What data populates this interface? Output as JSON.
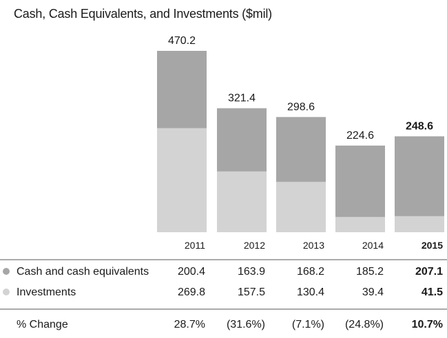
{
  "chart_data": {
    "type": "bar",
    "stacked": true,
    "title": "Cash, Cash Equivalents, and Investments ($mil)",
    "categories": [
      "2011",
      "2012",
      "2013",
      "2014",
      "2015"
    ],
    "highlight_category": "2015",
    "series": [
      {
        "name": "Cash and cash equivalents",
        "values": [
          200.4,
          163.9,
          168.2,
          185.2,
          207.1
        ],
        "labels": [
          "200.4",
          "163.9",
          "168.2",
          "185.2",
          "207.1"
        ],
        "color": "#a6a6a6"
      },
      {
        "name": "Investments",
        "values": [
          269.8,
          157.5,
          130.4,
          39.4,
          41.5
        ],
        "labels": [
          "269.8",
          "157.5",
          "130.4",
          "39.4",
          "41.5"
        ],
        "color": "#d3d3d3"
      }
    ],
    "totals": [
      470.2,
      321.4,
      298.6,
      224.6,
      248.6
    ],
    "total_labels": [
      "470.2",
      "321.4",
      "298.6",
      "224.6",
      "248.6"
    ],
    "change_label": "% Change",
    "change_values": [
      "28.7%",
      "(31.6%)",
      "(7.1%)",
      "(24.8%)",
      "10.7%"
    ],
    "ylim": [
      0,
      470.2
    ],
    "grid": false,
    "legend": "table-rows-below"
  }
}
